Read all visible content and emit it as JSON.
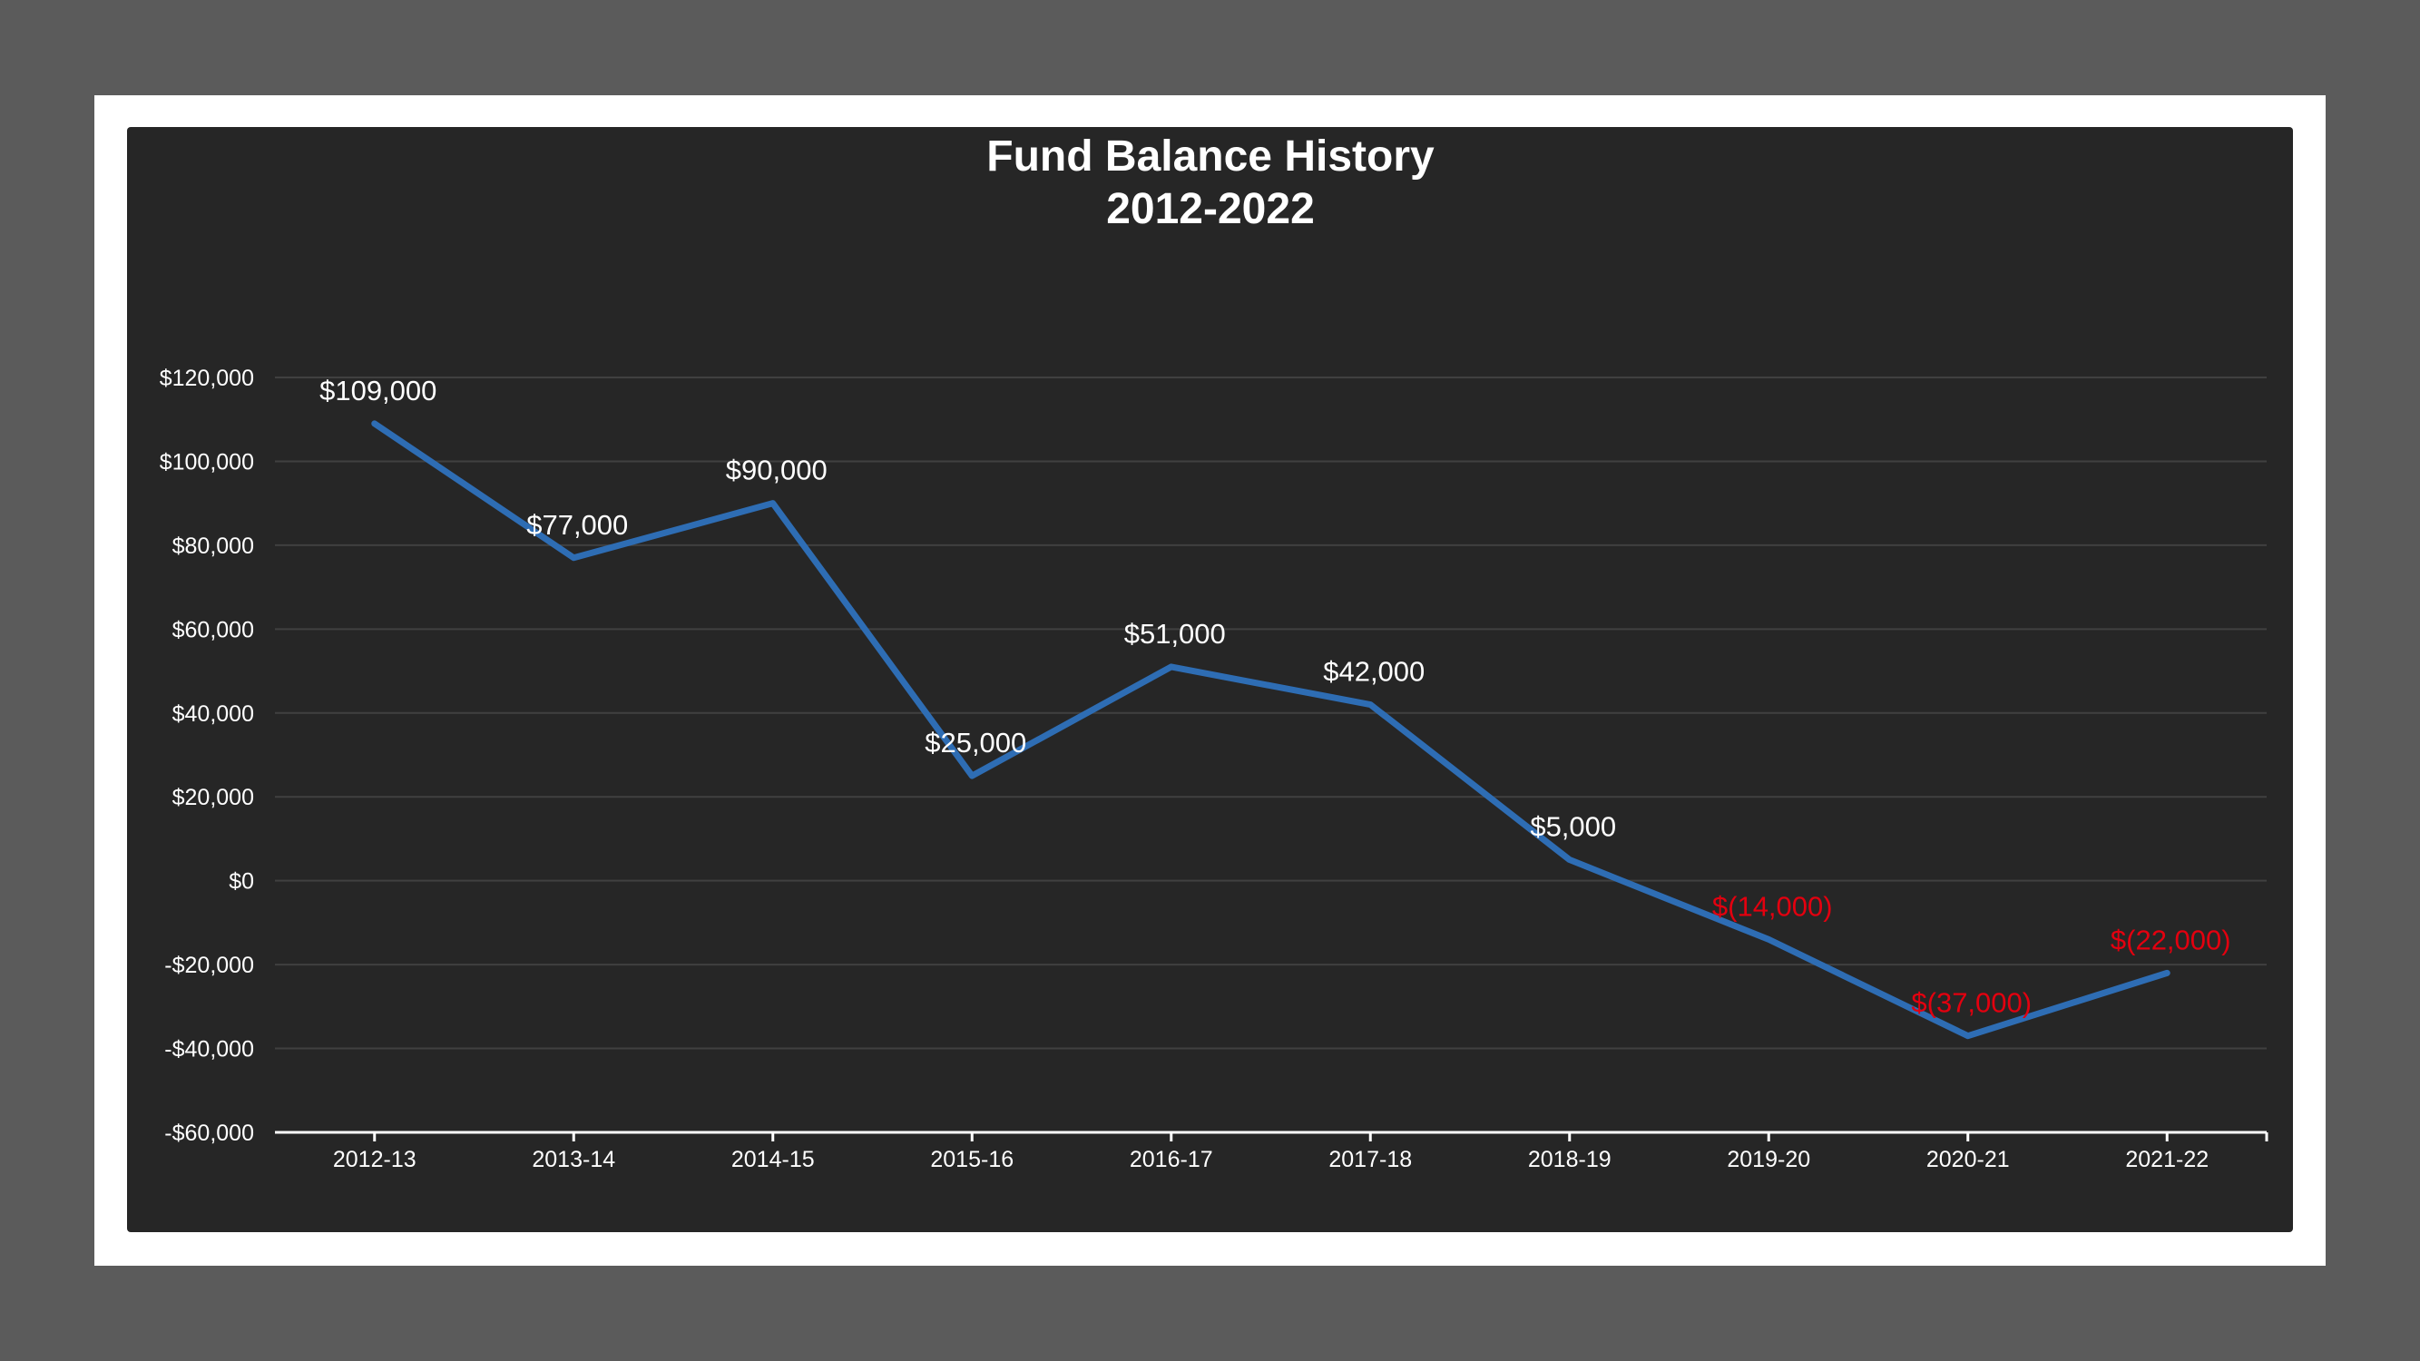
{
  "chart_data": {
    "type": "line",
    "title": "Fund Balance History",
    "subtitle": "2012-2022",
    "xlabel": "",
    "ylabel": "",
    "categories": [
      "2012-13",
      "2013-14",
      "2014-15",
      "2015-16",
      "2016-17",
      "2017-18",
      "2018-19",
      "2019-20",
      "2020-21",
      "2021-22"
    ],
    "values": [
      109000,
      77000,
      90000,
      25000,
      51000,
      42000,
      5000,
      -14000,
      -37000,
      -22000
    ],
    "data_labels": [
      "$109,000",
      "$77,000",
      "$90,000",
      "$25,000",
      "$51,000",
      "$42,000",
      "$5,000",
      "$(14,000)",
      "$(37,000)",
      "$(22,000)"
    ],
    "ylim": [
      -60000,
      120000
    ],
    "yticks": [
      120000,
      100000,
      80000,
      60000,
      40000,
      20000,
      0,
      -20000,
      -40000,
      -60000
    ],
    "ytick_labels": [
      "$120,000",
      "$100,000",
      "$80,000",
      "$60,000",
      "$40,000",
      "$20,000",
      "$0",
      "-$20,000",
      "-$40,000",
      "-$60,000"
    ],
    "grid": true,
    "legend": "none",
    "colors": {
      "line": "#2e6db4",
      "positive_label": "#ffffff",
      "negative_label": "#e3000f",
      "gridline": "#404040",
      "axis_text": "#ffffff",
      "background": "#262626",
      "frame": "#ffffff",
      "outer": "#5b5b5b"
    }
  }
}
